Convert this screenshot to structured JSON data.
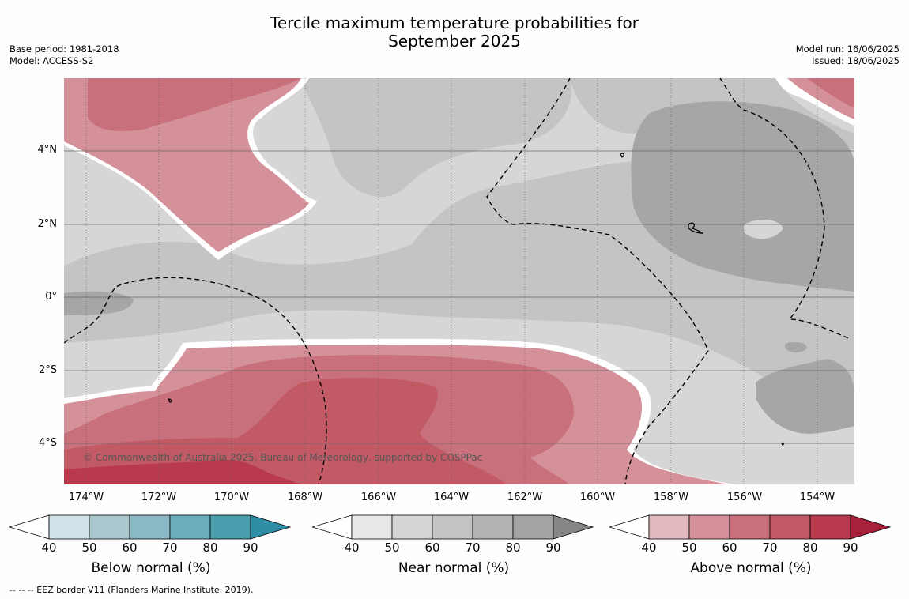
{
  "title_line1": "Tercile maximum temperature probabilities for",
  "title_line2": "September 2025",
  "base_period": "Base period: 1981-2018",
  "model": "Model: ACCESS-S2",
  "model_run": "Model run: 16/06/2025",
  "issued": "Issued: 18/06/2025",
  "copyright": "© Commonwealth of Australia 2025, Bureau of Meteorology, supported by COSPPac",
  "footer": "--  --  -- EEZ border V11 (Flanders Marine Institute, 2019).",
  "lon_labels": [
    "174°W",
    "172°W",
    "170°W",
    "168°W",
    "166°W",
    "164°W",
    "162°W",
    "160°W",
    "158°W",
    "156°W",
    "154°W"
  ],
  "lat_labels": [
    "4°N",
    "2°N",
    "0°",
    "2°S",
    "4°S"
  ],
  "colorbars": [
    {
      "title": "Below normal (%)",
      "ticks": [
        "40",
        "50",
        "60",
        "70",
        "80",
        "90"
      ],
      "colors": [
        "#ffffff",
        "#cfe3e9",
        "#a9c9cf",
        "#8ab8c5",
        "#6badbc",
        "#4a9eae",
        "#2f8ea6"
      ]
    },
    {
      "title": "Near normal (%)",
      "ticks": [
        "40",
        "50",
        "60",
        "70",
        "80",
        "90"
      ],
      "colors": [
        "#ffffff",
        "#e8e8e8",
        "#d6d6d6",
        "#c4c4c4",
        "#b4b4b4",
        "#a4a4a4",
        "#868686"
      ]
    },
    {
      "title": "Above normal (%)",
      "ticks": [
        "40",
        "50",
        "60",
        "70",
        "80",
        "90"
      ],
      "colors": [
        "#ffffff",
        "#e2b9bf",
        "#d5919a",
        "#c8707b",
        "#c25a66",
        "#b83a4c",
        "#a8203a"
      ]
    }
  ]
}
